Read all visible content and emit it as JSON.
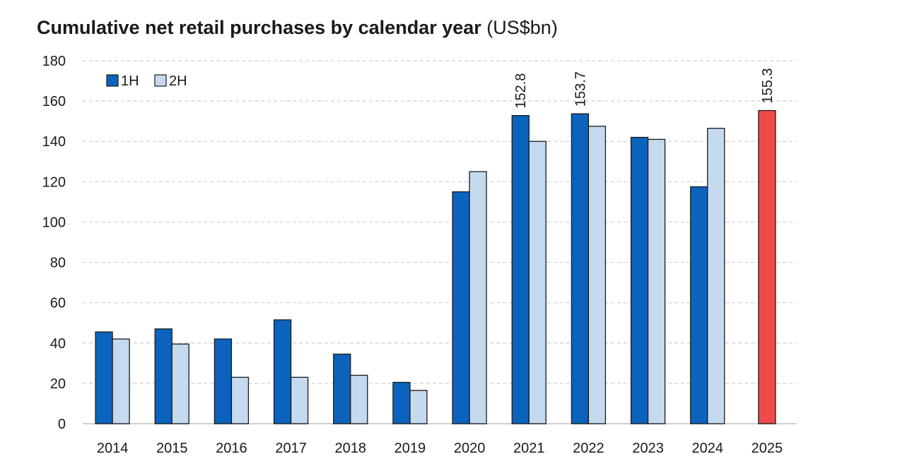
{
  "chart_data": {
    "type": "bar",
    "title": "Cumulative net retail purchases by calendar year",
    "unit": "(US$bn)",
    "ylim": [
      0,
      180
    ],
    "yticks": [
      "0",
      "20",
      "40",
      "60",
      "80",
      "100",
      "120",
      "140",
      "160",
      "180"
    ],
    "grid": true,
    "legend_position": "top-left",
    "categories": [
      "2014",
      "2015",
      "2016",
      "2017",
      "2018",
      "2019",
      "2020",
      "2021",
      "2022",
      "2023",
      "2024",
      "2025"
    ],
    "series": [
      {
        "name": "1H",
        "color": "#0b63bd",
        "values": [
          45.5,
          47.0,
          42.0,
          51.5,
          34.5,
          20.5,
          115.0,
          152.8,
          153.7,
          142.0,
          117.5,
          155.3
        ]
      },
      {
        "name": "2H",
        "color": "#c5d9ef",
        "values": [
          42.0,
          39.5,
          23.0,
          23.0,
          24.0,
          16.5,
          125.0,
          140.0,
          147.5,
          141.0,
          146.5,
          null
        ]
      }
    ],
    "highlight": {
      "category": "2025",
      "series": "1H",
      "color": "#f04b4b"
    },
    "data_labels": [
      {
        "category": "2021",
        "series": "1H",
        "text": "152.8"
      },
      {
        "category": "2022",
        "series": "1H",
        "text": "153.7"
      },
      {
        "category": "2025",
        "series": "1H",
        "text": "155.3"
      }
    ]
  }
}
